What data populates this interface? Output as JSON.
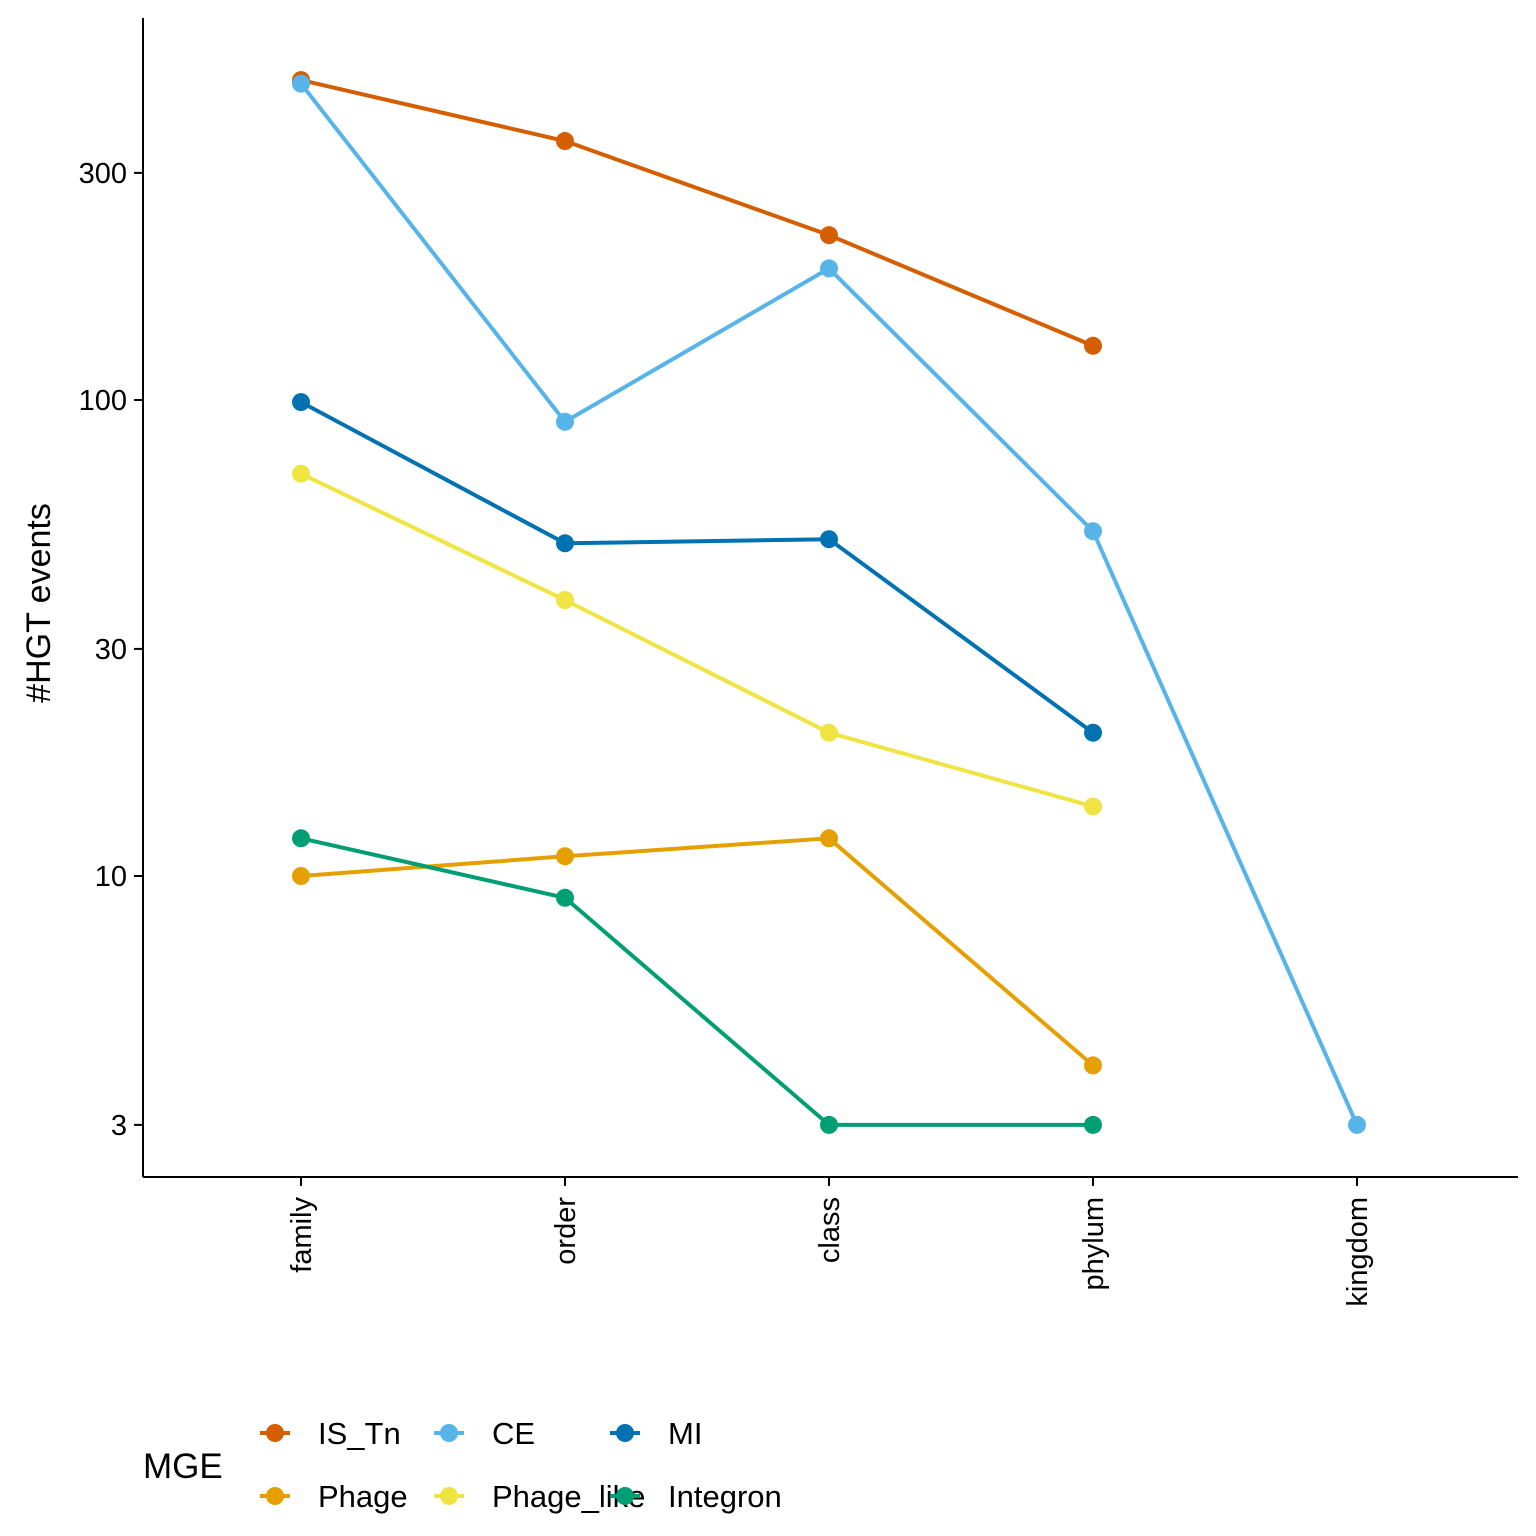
{
  "chart_data": {
    "type": "line",
    "title": "",
    "xlabel": "",
    "ylabel": "#HGT events",
    "x_scale": "categorical",
    "y_scale": "log10",
    "ylim": [
      2.45,
      570
    ],
    "grid": false,
    "legend_position": "bottom",
    "legend_title": "MGE",
    "categories": [
      "family",
      "order",
      "class",
      "phylum",
      "kingdom"
    ],
    "y_ticks": [
      3,
      10,
      30,
      100,
      300
    ],
    "y_tick_labels": [
      "3",
      "10",
      "30",
      "100",
      "300"
    ],
    "series": [
      {
        "name": "IS_Tn",
        "color": "#D55E00",
        "values": [
          470,
          350,
          222,
          130,
          null
        ]
      },
      {
        "name": "CE",
        "color": "#56B4E9",
        "values": [
          462,
          90,
          189,
          53,
          3
        ]
      },
      {
        "name": "MI",
        "color": "#0072B2",
        "values": [
          99,
          50,
          51,
          20,
          null
        ]
      },
      {
        "name": "Phage",
        "color": "#E69F00",
        "values": [
          10,
          11,
          12,
          4,
          null
        ]
      },
      {
        "name": "Phage_like",
        "color": "#F0E442",
        "values": [
          70,
          38,
          20,
          14,
          null
        ]
      },
      {
        "name": "Integron",
        "color": "#009E73",
        "values": [
          12,
          9,
          3,
          3,
          null
        ]
      }
    ]
  }
}
